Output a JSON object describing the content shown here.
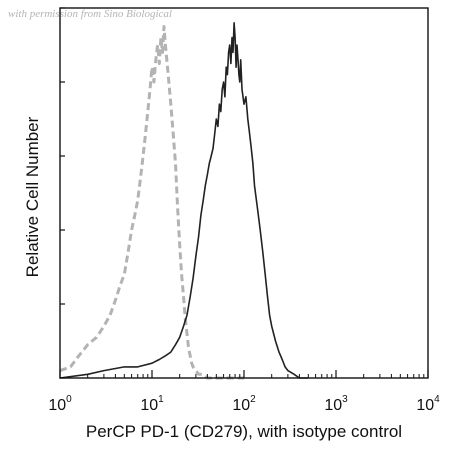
{
  "watermark": "with permission from Sino Biological",
  "colors": {
    "sample": "#222222",
    "isotype": "#b3b3b3",
    "axis": "#111111"
  },
  "chart_data": {
    "type": "line",
    "title": "",
    "xlabel": "PerCP PD-1 (CD279), with isotype control",
    "ylabel": "Relative Cell Number",
    "x_scale": "log",
    "xlim": [
      1,
      10000
    ],
    "ylim": [
      0,
      100
    ],
    "x_ticks": [
      {
        "base": "10",
        "exp": "0",
        "value": 1
      },
      {
        "base": "10",
        "exp": "1",
        "value": 10
      },
      {
        "base": "10",
        "exp": "2",
        "value": 100
      },
      {
        "base": "10",
        "exp": "3",
        "value": 1000
      },
      {
        "base": "10",
        "exp": "4",
        "value": 10000
      }
    ],
    "y_ticks": [
      0,
      20,
      40,
      60,
      80,
      100
    ],
    "grid": false,
    "legend": "none",
    "series": [
      {
        "style": "dashed",
        "color": "#b3b3b3",
        "x": [
          1.0,
          1.3,
          1.6,
          2.0,
          2.5,
          3.0,
          3.5,
          4.0,
          4.5,
          5.0,
          5.5,
          6.0,
          6.5,
          7.0,
          7.5,
          8.0,
          8.5,
          9.0,
          9.5,
          10.0,
          10.5,
          11.0,
          11.5,
          12.0,
          12.5,
          13.0,
          13.5,
          14.0,
          14.5,
          15.0,
          16.0,
          17.0,
          18.0,
          19.0,
          20.0,
          21.0,
          22.0,
          23.0,
          24.0,
          25.0,
          26.0,
          27.0,
          28.0,
          30.0,
          32.0,
          35.0,
          40.0,
          50.0,
          70.0,
          100.0
        ],
        "y": [
          2,
          3,
          6,
          9,
          11,
          14,
          17,
          21,
          25,
          28,
          34,
          40,
          44,
          48,
          54,
          60,
          66,
          72,
          78,
          84,
          80,
          86,
          90,
          85,
          92,
          88,
          95,
          90,
          86,
          82,
          74,
          66,
          58,
          46,
          36,
          28,
          22,
          16,
          12,
          8,
          6,
          4,
          3,
          2,
          1,
          1,
          0,
          0,
          0,
          0
        ]
      },
      {
        "style": "solid",
        "color": "#222222",
        "x": [
          1.0,
          2.0,
          3.0,
          5.0,
          7.0,
          10.0,
          12.0,
          14.0,
          16.0,
          18.0,
          20.0,
          22.0,
          24.0,
          26.0,
          28.0,
          30.0,
          32.0,
          34.0,
          36.0,
          38.0,
          40.0,
          42.0,
          44.0,
          46.0,
          48.0,
          50.0,
          52.0,
          54.0,
          56.0,
          58.0,
          60.0,
          62.0,
          64.0,
          66.0,
          68.0,
          70.0,
          72.0,
          74.0,
          76.0,
          78.0,
          80.0,
          82.0,
          84.0,
          86.0,
          88.0,
          90.0,
          92.0,
          95.0,
          100.0,
          105.0,
          110.0,
          115.0,
          120.0,
          125.0,
          130.0,
          140.0,
          150.0,
          160.0,
          170.0,
          180.0,
          190.0,
          200.0,
          220.0,
          240.0,
          260.0,
          280.0,
          300.0,
          350.0,
          400.0,
          500.0
        ],
        "y": [
          0,
          1,
          2,
          3,
          3,
          4,
          5,
          6,
          7,
          9,
          11,
          14,
          17,
          22,
          27,
          33,
          38,
          44,
          48,
          52,
          55,
          58,
          60,
          62,
          66,
          70,
          68,
          74,
          72,
          78,
          80,
          76,
          84,
          82,
          88,
          90,
          85,
          92,
          88,
          96,
          92,
          84,
          90,
          86,
          82,
          80,
          86,
          78,
          74,
          76,
          70,
          66,
          62,
          58,
          52,
          46,
          40,
          34,
          28,
          22,
          17,
          14,
          10,
          7,
          5,
          3,
          2,
          1,
          0,
          0
        ]
      }
    ]
  }
}
